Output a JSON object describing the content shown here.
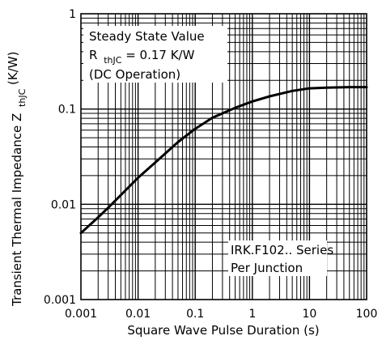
{
  "chart_data": {
    "type": "line",
    "x_scale": "log",
    "y_scale": "log",
    "xlim": [
      0.001,
      100
    ],
    "ylim": [
      0.001,
      1
    ],
    "grid": true,
    "xlabel": "Square Wave Pulse Duration (s)",
    "ylabel": "Transient Thermal Impedance Z",
    "ylabel_sub": "thJC",
    "ylabel_unit": "(K/W)",
    "x_ticks": [
      "0.001",
      "0.01",
      "0.1",
      "1",
      "10",
      "100"
    ],
    "y_ticks": [
      "1",
      "0.1",
      "0.01",
      "0.001"
    ],
    "x_tick_values": [
      0.001,
      0.01,
      0.1,
      1,
      10,
      100
    ],
    "y_tick_values": [
      1,
      0.1,
      0.01,
      0.001
    ],
    "series": [
      {
        "x": [
          0.001,
          0.002,
          0.003,
          0.005,
          0.01,
          0.02,
          0.05,
          0.1,
          0.2,
          0.5,
          1,
          2,
          5,
          10,
          20,
          50,
          100
        ],
        "y": [
          0.005,
          0.0073,
          0.0092,
          0.0125,
          0.019,
          0.0275,
          0.045,
          0.062,
          0.081,
          0.103,
          0.12,
          0.136,
          0.155,
          0.165,
          0.168,
          0.17,
          0.17
        ]
      }
    ],
    "annotations": {
      "steady_state": {
        "line1": "Steady State Value",
        "r_main": "R",
        "r_sub": "thJC",
        "r_value": "= 0.17 K/W",
        "line3": "(DC Operation)"
      },
      "series_note": {
        "line1": "IRK.F102.. Series",
        "line2": "Per Junction"
      }
    }
  }
}
